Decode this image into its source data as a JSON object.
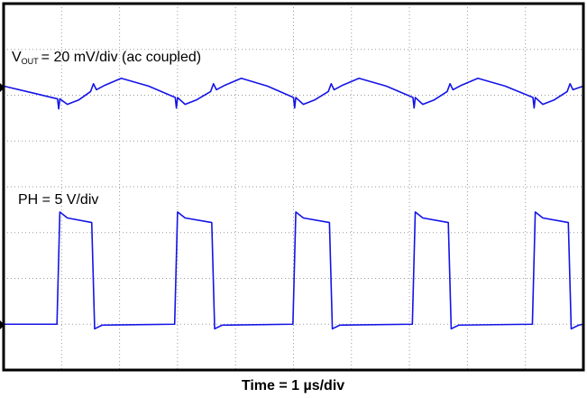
{
  "chart_data": {
    "type": "line",
    "annotations": [
      "V",
      "OUT",
      "= 20 mV/div (ac coupled)",
      "PH = 5 V/div"
    ],
    "xlabel": "Time = 1 µs/div",
    "xlim": [
      0,
      10
    ],
    "ylim": [
      -4,
      4
    ],
    "xticks": [
      0,
      1,
      2,
      3,
      4,
      5,
      6,
      7,
      8,
      9,
      10
    ],
    "yticks": [
      -4,
      -3,
      -2,
      -1,
      0,
      1,
      2,
      3,
      4
    ],
    "grid": true,
    "series": [
      {
        "color": "#1414e6",
        "x": [
          0,
          0.5,
          0.93,
          0.95,
          0.97,
          1.1,
          1.3,
          1.5,
          1.55,
          1.6,
          1.75,
          2.03,
          2.5,
          2.96,
          2.98,
          3.0,
          3.13,
          3.33,
          3.57,
          3.62,
          3.67,
          3.82,
          4.1,
          4.55,
          5.0,
          5.02,
          5.04,
          5.17,
          5.37,
          5.6,
          5.65,
          5.7,
          5.85,
          6.13,
          6.6,
          7.06,
          7.08,
          7.1,
          7.23,
          7.43,
          7.65,
          7.7,
          7.75,
          7.9,
          8.18,
          8.65,
          9.13,
          9.15,
          9.17,
          9.3,
          9.5,
          9.72,
          9.77,
          9.82,
          10
        ],
        "values": [
          2.2,
          2.05,
          1.92,
          1.7,
          1.92,
          1.8,
          1.9,
          2.08,
          2.25,
          2.12,
          2.22,
          2.37,
          2.2,
          1.95,
          1.72,
          1.95,
          1.8,
          1.9,
          2.08,
          2.25,
          2.12,
          2.22,
          2.37,
          2.2,
          1.95,
          1.72,
          1.95,
          1.8,
          1.9,
          2.08,
          2.25,
          2.12,
          2.22,
          2.37,
          2.2,
          1.95,
          1.72,
          1.95,
          1.8,
          1.9,
          2.08,
          2.25,
          2.12,
          2.22,
          2.37,
          2.2,
          1.95,
          1.72,
          1.95,
          1.8,
          1.9,
          2.08,
          2.25,
          2.12,
          2.2
        ]
      },
      {
        "color": "#1414e6",
        "x": [
          0,
          0.92,
          0.97,
          1.1,
          1.52,
          1.57,
          1.7,
          2.95,
          3.0,
          3.13,
          3.59,
          3.64,
          3.77,
          4.99,
          5.04,
          5.17,
          5.62,
          5.67,
          5.8,
          7.05,
          7.1,
          7.23,
          7.67,
          7.72,
          7.85,
          9.12,
          9.17,
          9.3,
          9.74,
          9.79,
          9.92,
          10
        ],
        "values": [
          -3.0,
          -3.0,
          -0.55,
          -0.68,
          -0.78,
          -3.1,
          -3.02,
          -3.0,
          -0.55,
          -0.68,
          -0.78,
          -3.1,
          -3.02,
          -3.0,
          -0.55,
          -0.68,
          -0.78,
          -3.1,
          -3.02,
          -3.0,
          -0.55,
          -0.68,
          -0.78,
          -3.1,
          -3.02,
          -3.0,
          -0.55,
          -0.68,
          -0.78,
          -3.1,
          -3.02,
          -3.0
        ]
      }
    ]
  }
}
